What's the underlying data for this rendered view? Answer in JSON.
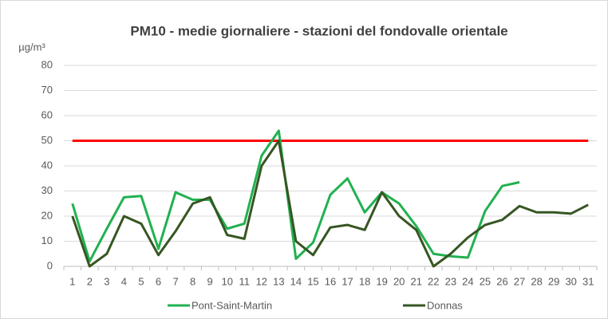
{
  "chart_data": {
    "type": "line",
    "title": "PM10 - medie giornaliere - stazioni del fondovalle orientale",
    "y_label": "µg/m³",
    "categories": [
      "1",
      "2",
      "3",
      "4",
      "5",
      "6",
      "7",
      "8",
      "9",
      "10",
      "11",
      "12",
      "13",
      "14",
      "15",
      "16",
      "17",
      "18",
      "19",
      "20",
      "21",
      "22",
      "23",
      "24",
      "25",
      "26",
      "27",
      "28",
      "29",
      "30",
      "31"
    ],
    "series": [
      {
        "name": "Pont-Saint-Martin",
        "color": "#21b150",
        "values": [
          25,
          2,
          15,
          27.5,
          28,
          7,
          29.5,
          26.5,
          26.5,
          15,
          17,
          44,
          54,
          3,
          9.5,
          28.5,
          35,
          21.5,
          29.5,
          25,
          16,
          5,
          4,
          3.5,
          22,
          32,
          33.5,
          null,
          null,
          null,
          null
        ]
      },
      {
        "name": "Donnas",
        "color": "#375623",
        "values": [
          20,
          0,
          5,
          20,
          17,
          4.5,
          14,
          25,
          27.5,
          12.5,
          11,
          40,
          50,
          10,
          4.5,
          15.5,
          16.5,
          14.5,
          29.5,
          20,
          14.5,
          0,
          5,
          11.5,
          16.5,
          18.5,
          24,
          21.5,
          21.5,
          21,
          24.5
        ]
      }
    ],
    "threshold": {
      "value": 50,
      "color": "#ff0000"
    },
    "ylim": [
      0,
      80
    ],
    "yticks": [
      0,
      10,
      20,
      30,
      40,
      50,
      60,
      70,
      80
    ],
    "grid": true,
    "legend": "bottom"
  }
}
